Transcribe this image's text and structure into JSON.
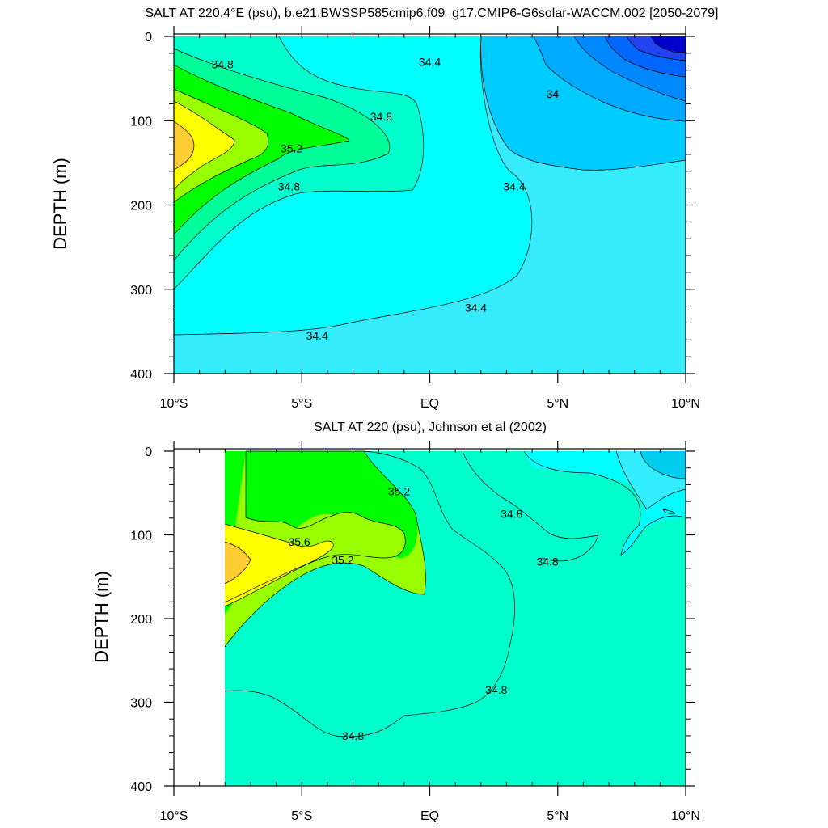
{
  "chart_data": [
    {
      "type": "contour",
      "title": "SALT AT 220.4°E (psu), b.e21.BWSSP585cmip6.f09_g17.CMIP6-G6solar-WACCM.002 [2050-2079]",
      "xlabel": "",
      "ylabel": "DEPTH (m)",
      "xlim": [
        -10,
        10
      ],
      "ylim": [
        400,
        0
      ],
      "x_ticks": [
        -10,
        -5,
        0,
        5,
        10
      ],
      "x_tick_labels": [
        "10°S",
        "5°S",
        "EQ",
        "5°N",
        "10°N"
      ],
      "y_ticks": [
        0,
        100,
        200,
        300,
        400
      ],
      "y_tick_labels": [
        "0",
        "100",
        "200",
        "300",
        "400"
      ],
      "levels": [
        33.4,
        33.6,
        33.8,
        34.0,
        34.2,
        34.4,
        34.6,
        34.8,
        35.0,
        35.2,
        35.4,
        35.6,
        35.8
      ],
      "contour_labels": [
        {
          "text": "34.8",
          "lat": -8.1,
          "depth": 33
        },
        {
          "text": "34.8",
          "lat": -1.9,
          "depth": 95
        },
        {
          "text": "35.2",
          "lat": -5.4,
          "depth": 133
        },
        {
          "text": "34.8",
          "lat": -5.5,
          "depth": 178
        },
        {
          "text": "34.4",
          "lat": 0.0,
          "depth": 30
        },
        {
          "text": "34",
          "lat": 4.8,
          "depth": 68
        },
        {
          "text": "34.4",
          "lat": 3.3,
          "depth": 178
        },
        {
          "text": "34.4",
          "lat": 1.8,
          "depth": 322
        },
        {
          "text": "34.4",
          "lat": -4.4,
          "depth": 355
        }
      ]
    },
    {
      "type": "contour",
      "title": "SALT AT 220 (psu), Johnson et al (2002)",
      "xlabel": "",
      "ylabel": "DEPTH (m)",
      "xlim": [
        -10,
        10
      ],
      "ylim": [
        400,
        0
      ],
      "data_lat_range": [
        -8,
        10
      ],
      "x_ticks": [
        -10,
        -5,
        0,
        5,
        10
      ],
      "x_tick_labels": [
        "10°S",
        "5°S",
        "EQ",
        "5°N",
        "10°N"
      ],
      "y_ticks": [
        0,
        100,
        200,
        300,
        400
      ],
      "y_tick_labels": [
        "0",
        "100",
        "200",
        "300",
        "400"
      ],
      "levels": [
        34.4,
        34.6,
        34.8,
        35.0,
        35.2,
        35.4,
        35.6,
        35.8
      ],
      "contour_labels": [
        {
          "text": "35.2",
          "lat": -1.2,
          "depth": 48
        },
        {
          "text": "35.6",
          "lat": -5.1,
          "depth": 108
        },
        {
          "text": "35.2",
          "lat": -3.4,
          "depth": 130
        },
        {
          "text": "34.8",
          "lat": 3.2,
          "depth": 75
        },
        {
          "text": "34.8",
          "lat": 4.6,
          "depth": 132
        },
        {
          "text": "34.8",
          "lat": 2.6,
          "depth": 285
        },
        {
          "text": "34.8",
          "lat": -3.0,
          "depth": 340
        }
      ]
    }
  ]
}
